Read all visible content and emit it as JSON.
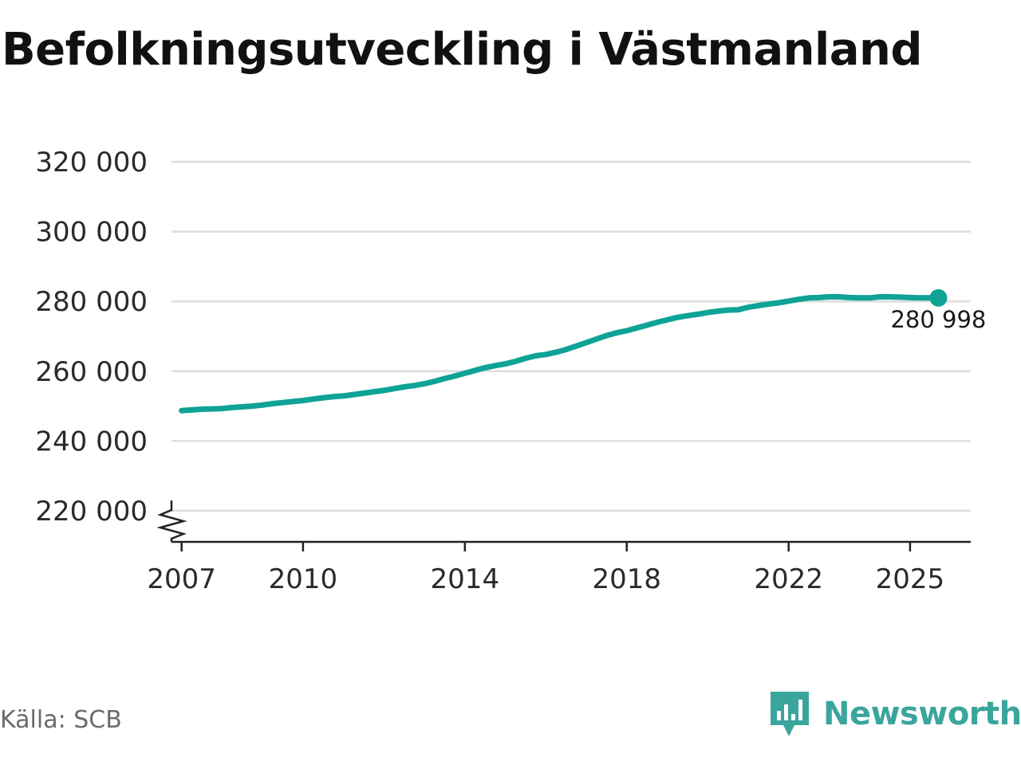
{
  "title": "Befolkningsutveckling i Västmanland",
  "source": "Källa: SCB",
  "brand": {
    "name": "Newsworthy",
    "icon": "newsworthy-logo-icon",
    "color": "#3aa59c"
  },
  "colors": {
    "line": "#0fa396",
    "grid": "#dddddd",
    "axis": "#222222"
  },
  "chart_data": {
    "type": "line",
    "title": "Befolkningsutveckling i Västmanland",
    "ylim": [
      220000,
      320000
    ],
    "y_ticks": [
      220000,
      240000,
      260000,
      280000,
      300000,
      320000
    ],
    "y_tick_labels": [
      "220 000",
      "240 000",
      "260 000",
      "280 000",
      "300 000",
      "320 000"
    ],
    "y_axis_break": true,
    "xlim": [
      2006.75,
      2026.5
    ],
    "x_ticks": [
      2007,
      2010,
      2014,
      2018,
      2022,
      2025
    ],
    "x_tick_labels": [
      "2007",
      "2010",
      "2014",
      "2018",
      "2022",
      "2025"
    ],
    "grid": true,
    "series": [
      {
        "x": [
          2007.0,
          2007.25,
          2007.5,
          2007.75,
          2008.0,
          2008.25,
          2008.5,
          2008.75,
          2009.0,
          2009.25,
          2009.5,
          2009.75,
          2010.0,
          2010.25,
          2010.5,
          2010.75,
          2011.0,
          2011.25,
          2011.5,
          2011.75,
          2012.0,
          2012.25,
          2012.5,
          2012.75,
          2013.0,
          2013.25,
          2013.5,
          2013.75,
          2014.0,
          2014.25,
          2014.5,
          2014.75,
          2015.0,
          2015.25,
          2015.5,
          2015.75,
          2016.0,
          2016.25,
          2016.5,
          2016.75,
          2017.0,
          2017.25,
          2017.5,
          2017.75,
          2018.0,
          2018.25,
          2018.5,
          2018.75,
          2019.0,
          2019.25,
          2019.5,
          2019.75,
          2020.0,
          2020.25,
          2020.5,
          2020.75,
          2021.0,
          2021.25,
          2021.5,
          2021.75,
          2022.0,
          2022.25,
          2022.5,
          2022.75,
          2023.0,
          2023.25,
          2023.5,
          2023.75,
          2024.0,
          2024.25,
          2024.5,
          2024.75,
          2025.0,
          2025.25,
          2025.5,
          2025.7
        ],
        "values": [
          248700,
          248900,
          249100,
          249200,
          249300,
          249600,
          249800,
          250000,
          250300,
          250700,
          251000,
          251300,
          251600,
          252000,
          252400,
          252700,
          252900,
          253300,
          253700,
          254100,
          254500,
          255000,
          255500,
          255900,
          256400,
          257100,
          257900,
          258600,
          259400,
          260200,
          261000,
          261600,
          262100,
          262800,
          263700,
          264400,
          264800,
          265400,
          266200,
          267200,
          268200,
          269200,
          270200,
          271000,
          271600,
          272400,
          273200,
          274000,
          274700,
          275400,
          275900,
          276300,
          276800,
          277200,
          277500,
          277600,
          278300,
          278800,
          279200,
          279600,
          280100,
          280600,
          281000,
          281100,
          281300,
          281300,
          281100,
          281000,
          281000,
          281300,
          281300,
          281200,
          281100,
          281000,
          281000,
          280998
        ]
      }
    ],
    "end_label": "280 998"
  }
}
